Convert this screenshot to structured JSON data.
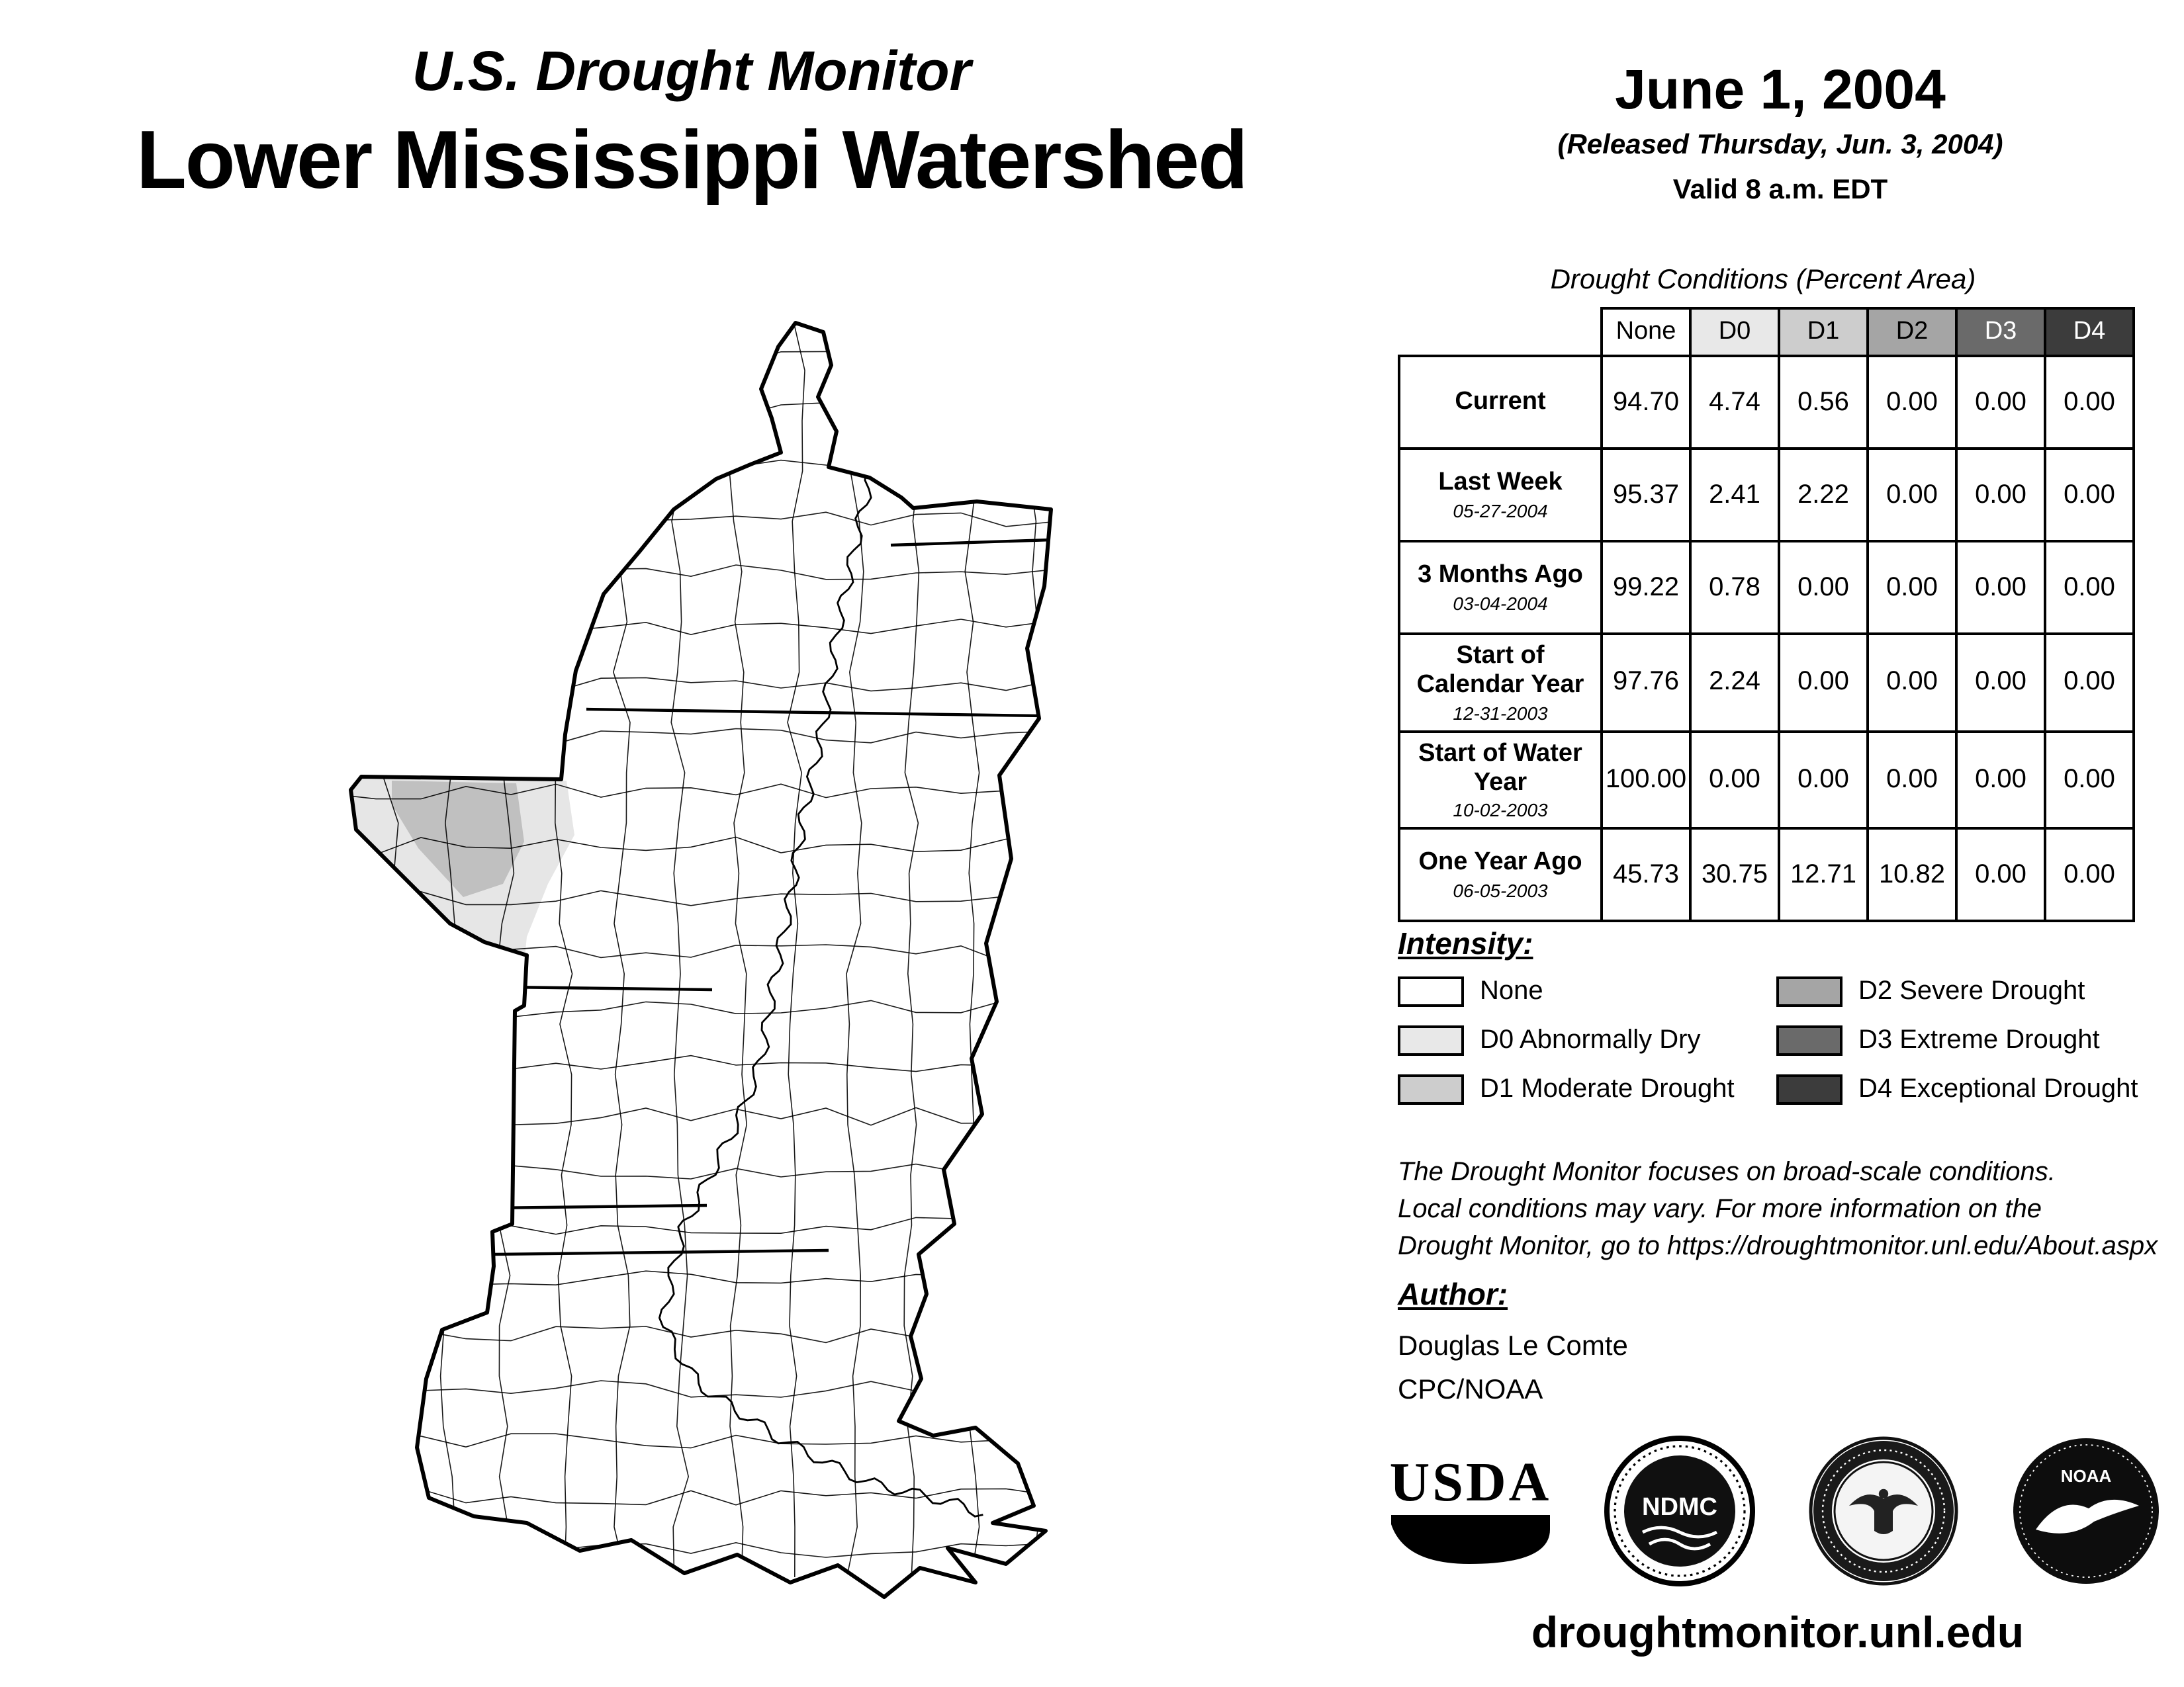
{
  "header": {
    "monitor_title": "U.S. Drought Monitor",
    "region_title": "Lower Mississippi Watershed",
    "date": "June 1, 2004",
    "released": "(Released Thursday, Jun. 3, 2004)",
    "valid": "Valid 8 a.m. EDT"
  },
  "table": {
    "title": "Drought Conditions (Percent Area)",
    "columns": [
      "None",
      "D0",
      "D1",
      "D2",
      "D3",
      "D4"
    ],
    "column_colors": [
      "#ffffff",
      "#e8e8e8",
      "#cdcdcd",
      "#a5a5a5",
      "#6a6a6a",
      "#3c3c3c"
    ],
    "rows": [
      {
        "label": "Current",
        "date": "",
        "values": [
          "94.70",
          "4.74",
          "0.56",
          "0.00",
          "0.00",
          "0.00"
        ]
      },
      {
        "label": "Last Week",
        "date": "05-27-2004",
        "values": [
          "95.37",
          "2.41",
          "2.22",
          "0.00",
          "0.00",
          "0.00"
        ]
      },
      {
        "label": "3 Months Ago",
        "date": "03-04-2004",
        "values": [
          "99.22",
          "0.78",
          "0.00",
          "0.00",
          "0.00",
          "0.00"
        ]
      },
      {
        "label": "Start of Calendar Year",
        "date": "12-31-2003",
        "values": [
          "97.76",
          "2.24",
          "0.00",
          "0.00",
          "0.00",
          "0.00"
        ]
      },
      {
        "label": "Start of Water Year",
        "date": "10-02-2003",
        "values": [
          "100.00",
          "0.00",
          "0.00",
          "0.00",
          "0.00",
          "0.00"
        ]
      },
      {
        "label": "One Year Ago",
        "date": "06-05-2003",
        "values": [
          "45.73",
          "30.75",
          "12.71",
          "10.82",
          "0.00",
          "0.00"
        ]
      }
    ]
  },
  "legend": {
    "title": "Intensity:",
    "items": [
      {
        "label": "None",
        "color": "#ffffff"
      },
      {
        "label": "D0 Abnormally Dry",
        "color": "#e8e8e8"
      },
      {
        "label": "D1 Moderate Drought",
        "color": "#cdcdcd"
      },
      {
        "label": "D2 Severe Drought",
        "color": "#a5a5a5"
      },
      {
        "label": "D3 Extreme Drought",
        "color": "#6a6a6a"
      },
      {
        "label": "D4 Exceptional Drought",
        "color": "#3c3c3c"
      }
    ]
  },
  "disclaimer": {
    "line1": "The Drought Monitor focuses on broad-scale conditions.",
    "line2": "Local conditions may vary. For more information on the",
    "line3": "Drought Monitor, go to https://droughtmonitor.unl.edu/About.aspx"
  },
  "author": {
    "title": "Author:",
    "name": "Douglas Le Comte",
    "org": "CPC/NOAA"
  },
  "logos": {
    "usda": "USDA",
    "ndmc": "NDMC",
    "noaa": "NOAA"
  },
  "footer": {
    "url": "droughtmonitor.unl.edu"
  },
  "map": {
    "shading": {
      "d0": "#e6e6e6",
      "d1": "#c0c0c0"
    },
    "background": "#ffffff",
    "boundary_color": "#000000"
  }
}
